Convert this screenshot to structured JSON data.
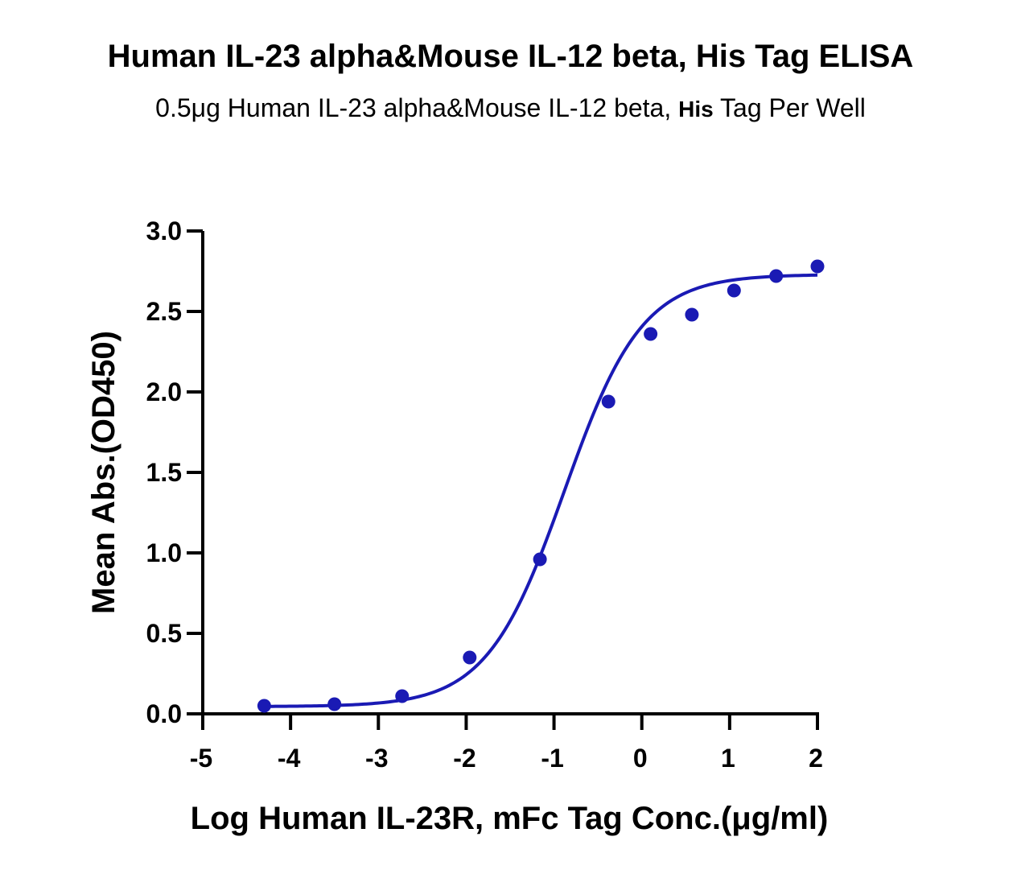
{
  "chart_data": {
    "type": "scatter",
    "title": "Human IL-23 alpha&Mouse IL-12 beta, His Tag ELISA",
    "subtitle_prefix": "0.5μg Human IL-23 alpha&Mouse IL-12 beta, ",
    "subtitle_bold": "His",
    "subtitle_suffix": " Tag Per Well",
    "xlabel": "Log Human IL-23R, mFc Tag Conc.(μg/ml)",
    "ylabel": "Mean Abs.(OD450)",
    "xlim": [
      -5,
      2
    ],
    "ylim": [
      0,
      3.0
    ],
    "xticks": [
      "-5",
      "-4",
      "-3",
      "-2",
      "-1",
      "0",
      "1",
      "2"
    ],
    "xtick_values": [
      -5,
      -4,
      -3,
      -2,
      -1,
      0,
      1,
      2
    ],
    "yticks": [
      "0.0",
      "0.5",
      "1.0",
      "1.5",
      "2.0",
      "2.5",
      "3.0"
    ],
    "ytick_values": [
      0,
      0.5,
      1.0,
      1.5,
      2.0,
      2.5,
      3.0
    ],
    "series": [
      {
        "color": "#1a1ab4",
        "x": [
          -4.3,
          -3.5,
          -2.73,
          -1.96,
          -1.16,
          -0.38,
          0.1,
          0.57,
          1.05,
          1.53,
          2.0
        ],
        "y": [
          0.05,
          0.06,
          0.11,
          0.35,
          0.96,
          1.94,
          2.36,
          2.48,
          2.63,
          2.72,
          2.78
        ]
      }
    ],
    "fit_curve": {
      "bottom": 0.045,
      "top": 2.73,
      "logEC50": -0.88,
      "hill": 0.98
    }
  }
}
